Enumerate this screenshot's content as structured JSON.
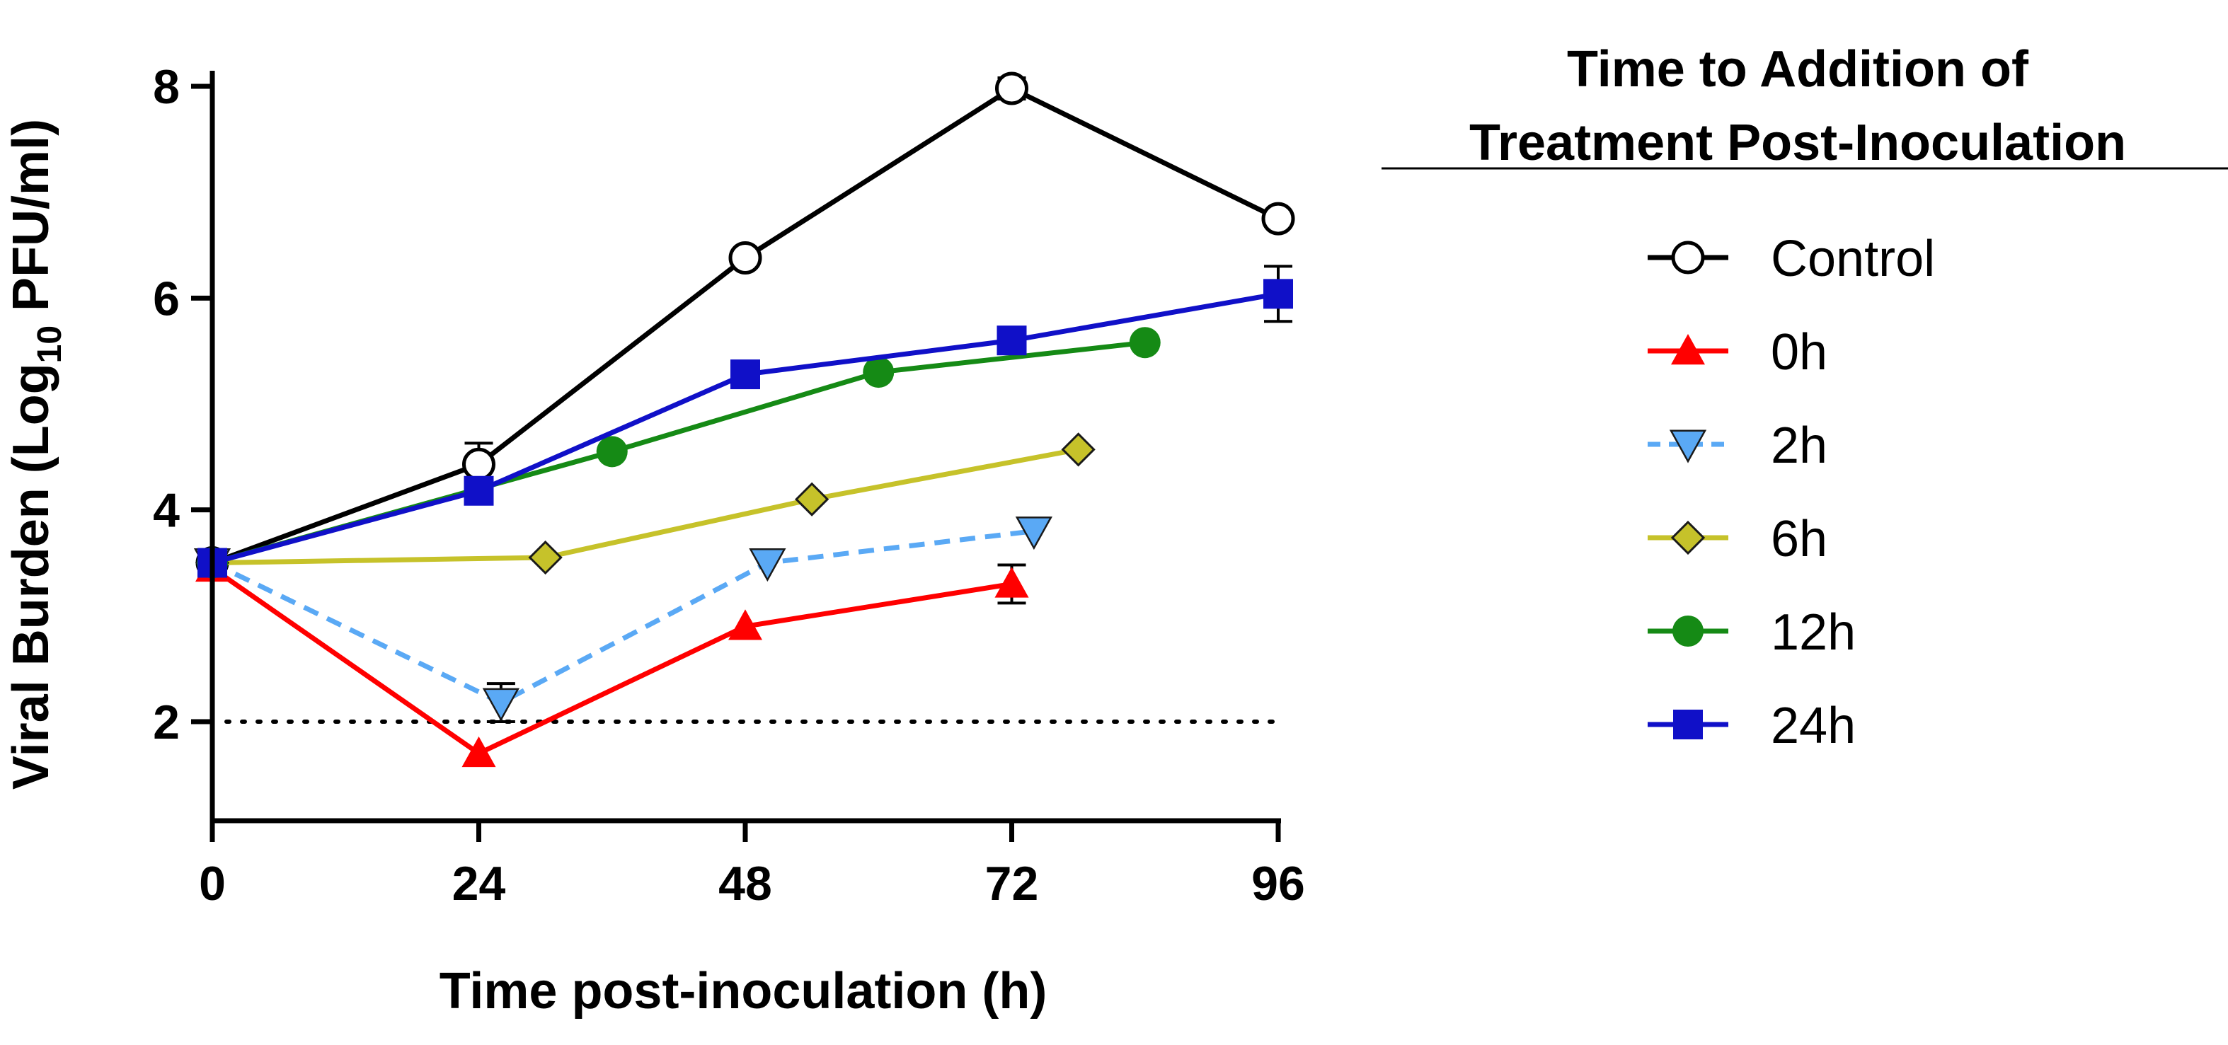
{
  "chart_data": {
    "type": "line",
    "xlabel": "Time post-inoculation (h)",
    "ylabel_main": "Viral Burden (Log",
    "ylabel_sub": "10",
    "ylabel_end": " PFU/ml)",
    "xlim": [
      0,
      96
    ],
    "ylim": [
      1,
      8.2
    ],
    "xticks": [
      0,
      24,
      48,
      72,
      96
    ],
    "yticks": [
      2,
      4,
      6,
      8
    ],
    "limit_of_detection": 2,
    "legend_title_line1": "Time to Addition of",
    "legend_title_line2": "Treatment Post-Inoculation",
    "series": [
      {
        "name": "Control",
        "color": "#000000",
        "marker": "circle-open",
        "dash": false,
        "x": [
          0,
          24,
          48,
          72,
          96
        ],
        "y": [
          3.5,
          4.43,
          6.38,
          7.98,
          6.75
        ],
        "err": [
          0.08,
          0.2,
          0,
          0.1,
          0
        ]
      },
      {
        "name": "0h",
        "color": "#ff0000",
        "marker": "triangle-up",
        "dash": false,
        "x": [
          0,
          24,
          48,
          72
        ],
        "y": [
          3.45,
          1.7,
          2.9,
          3.3
        ],
        "err": [
          0,
          0,
          0,
          0.18
        ]
      },
      {
        "name": "2h",
        "color": "#5aa9f5",
        "marker": "triangle-down",
        "dash": true,
        "x": [
          0,
          26,
          50,
          74
        ],
        "y": [
          3.5,
          2.18,
          3.5,
          3.8
        ],
        "err": [
          0,
          0.18,
          0,
          0
        ]
      },
      {
        "name": "6h",
        "color": "#c6c22a",
        "marker": "diamond",
        "dash": false,
        "x": [
          0,
          30,
          54,
          78
        ],
        "y": [
          3.5,
          3.55,
          4.1,
          4.57
        ],
        "err": [
          0,
          0,
          0,
          0
        ]
      },
      {
        "name": "12h",
        "color": "#158a15",
        "marker": "circle-filled",
        "dash": false,
        "x": [
          0,
          36,
          60,
          84
        ],
        "y": [
          3.5,
          4.55,
          5.3,
          5.58
        ],
        "err": [
          0,
          0,
          0,
          0
        ]
      },
      {
        "name": "24h",
        "color": "#1010c8",
        "marker": "square",
        "dash": false,
        "x": [
          0,
          24,
          48,
          72,
          96
        ],
        "y": [
          3.5,
          4.18,
          5.28,
          5.6,
          6.04
        ],
        "err": [
          0,
          0,
          0,
          0,
          0.26
        ]
      }
    ]
  }
}
